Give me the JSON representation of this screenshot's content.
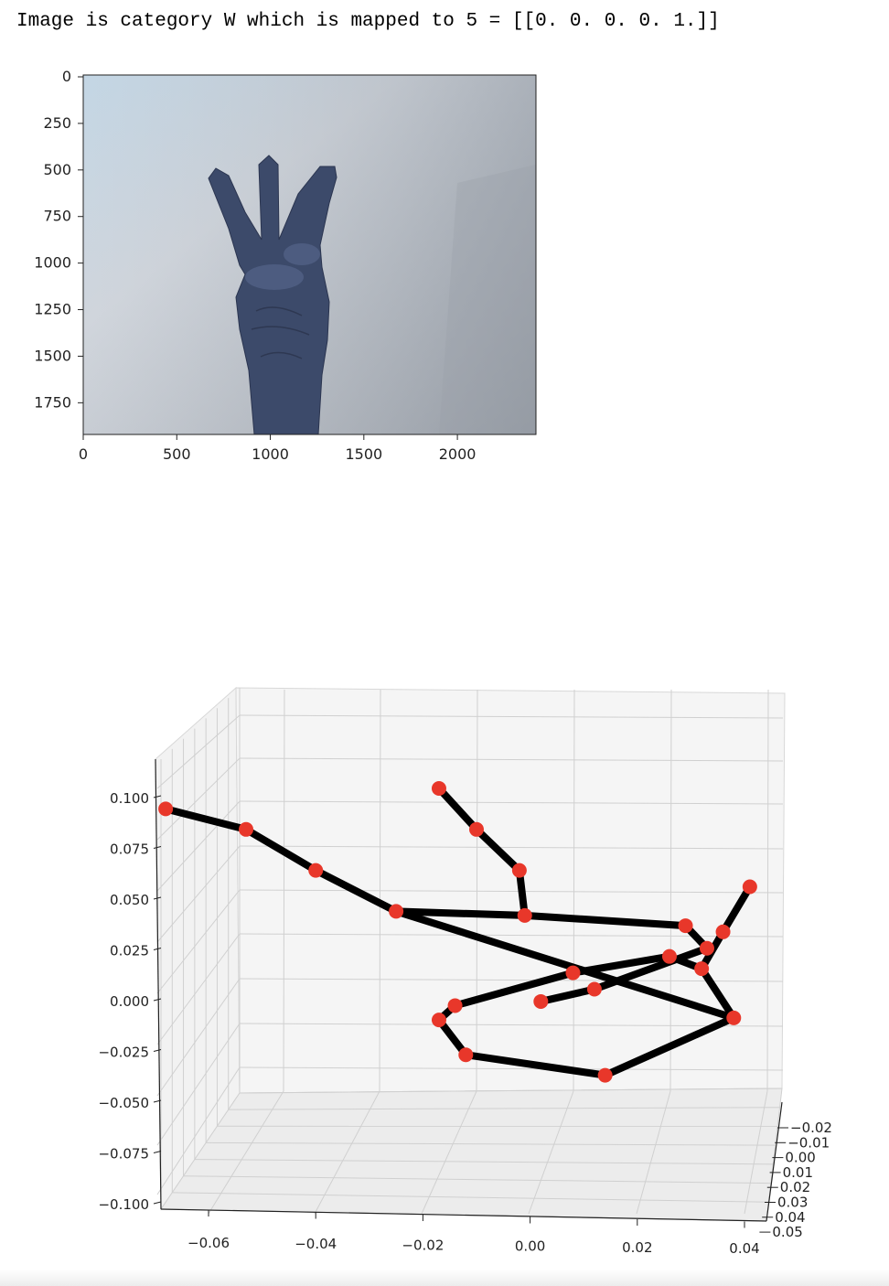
{
  "output": {
    "text": "Image is category W which is mapped to 5 = [[0. 0. 0. 0. 1.]]"
  },
  "image_plot": {
    "xticks": [
      "0",
      "500",
      "1000",
      "1500",
      "2000"
    ],
    "yticks": [
      "0",
      "250",
      "500",
      "750",
      "1000",
      "1250",
      "1500",
      "1750"
    ],
    "image_content": "photo of a hand showing three raised fingers against a grey wall"
  },
  "chart_data": {
    "type": "scatter",
    "projection": "3d",
    "title": "",
    "xlabel": "",
    "ylabel": "",
    "zlabel": "",
    "xticks": [
      "−0.06",
      "−0.04",
      "−0.02",
      "0.00",
      "0.02",
      "0.04"
    ],
    "zticks": [
      "0.100",
      "0.075",
      "0.050",
      "0.025",
      "0.000",
      "−0.025",
      "−0.050",
      "−0.075",
      "−0.100"
    ],
    "yticks": [
      "−0.02",
      "−0.01",
      "0.00",
      "0.01",
      "0.02",
      "0.03",
      "0.04",
      "0.05"
    ],
    "marker_color": "#e8372a",
    "line_color": "#000000",
    "pane_color": "#f2f2f2",
    "grid": true,
    "landmarks": [
      {
        "x": 0.014,
        "z": -0.04
      },
      {
        "x": 0.038,
        "z": -0.012
      },
      {
        "x": 0.032,
        "z": 0.012
      },
      {
        "x": 0.036,
        "z": 0.03
      },
      {
        "x": 0.041,
        "z": 0.052
      },
      {
        "x": -0.025,
        "z": 0.04
      },
      {
        "x": -0.04,
        "z": 0.06
      },
      {
        "x": -0.053,
        "z": 0.08
      },
      {
        "x": -0.068,
        "z": 0.09
      },
      {
        "x": -0.001,
        "z": 0.038
      },
      {
        "x": -0.002,
        "z": 0.06
      },
      {
        "x": -0.01,
        "z": 0.08
      },
      {
        "x": -0.017,
        "z": 0.1
      },
      {
        "x": 0.029,
        "z": 0.033
      },
      {
        "x": 0.033,
        "z": 0.022
      },
      {
        "x": 0.012,
        "z": 0.002
      },
      {
        "x": 0.002,
        "z": -0.004
      },
      {
        "x": 0.026,
        "z": 0.018
      },
      {
        "x": 0.008,
        "z": 0.01
      },
      {
        "x": -0.014,
        "z": -0.006
      },
      {
        "x": -0.017,
        "z": -0.013
      },
      {
        "x": -0.012,
        "z": -0.03
      }
    ],
    "connections": [
      [
        0,
        1
      ],
      [
        1,
        2
      ],
      [
        2,
        3
      ],
      [
        3,
        4
      ],
      [
        1,
        5
      ],
      [
        5,
        6
      ],
      [
        6,
        7
      ],
      [
        7,
        8
      ],
      [
        5,
        9
      ],
      [
        9,
        10
      ],
      [
        10,
        11
      ],
      [
        11,
        12
      ],
      [
        9,
        13
      ],
      [
        13,
        14
      ],
      [
        14,
        15
      ],
      [
        15,
        16
      ],
      [
        2,
        17
      ],
      [
        17,
        18
      ],
      [
        18,
        19
      ],
      [
        19,
        20
      ],
      [
        20,
        21
      ],
      [
        21,
        0
      ]
    ]
  }
}
